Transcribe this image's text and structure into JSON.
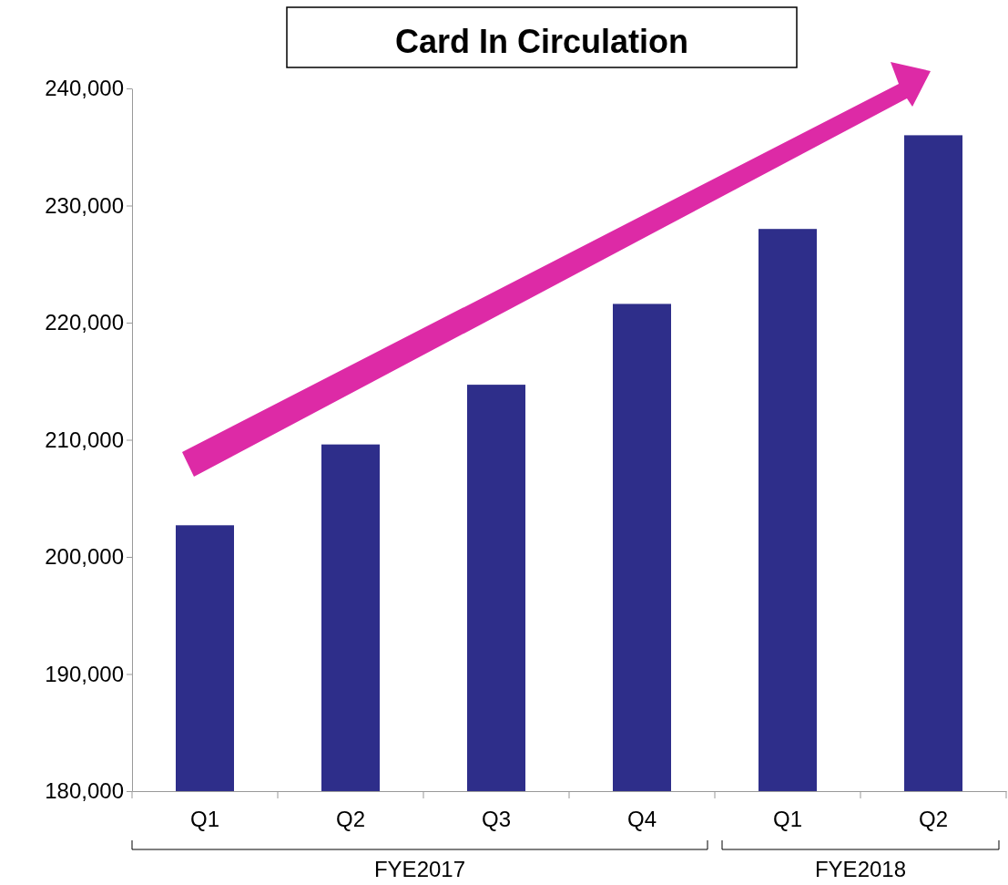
{
  "chart_data": {
    "type": "bar",
    "title": "Card In Circulation",
    "categories": [
      "Q1",
      "Q2",
      "Q3",
      "Q4",
      "Q1",
      "Q2"
    ],
    "values": [
      202700,
      209600,
      214700,
      221600,
      228000,
      236000
    ],
    "color": "#2e2e8a",
    "ylim": [
      180000,
      240000
    ],
    "yticks": [
      {
        "value": 180000,
        "label": "180,000"
      },
      {
        "value": 190000,
        "label": "190,000"
      },
      {
        "value": 200000,
        "label": "200,000"
      },
      {
        "value": 210000,
        "label": "210,000"
      },
      {
        "value": 220000,
        "label": "220,000"
      },
      {
        "value": 230000,
        "label": "230,000"
      },
      {
        "value": 240000,
        "label": "240,000"
      }
    ],
    "grid": false,
    "annotations": [
      "FYE2017",
      "FYE2018"
    ]
  }
}
